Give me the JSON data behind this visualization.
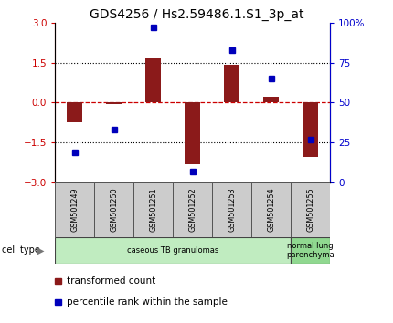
{
  "title": "GDS4256 / Hs2.59486.1.S1_3p_at",
  "samples": [
    "GSM501249",
    "GSM501250",
    "GSM501251",
    "GSM501252",
    "GSM501253",
    "GSM501254",
    "GSM501255"
  ],
  "transformed_count": [
    -0.75,
    -0.05,
    1.65,
    -2.3,
    1.42,
    0.22,
    -2.05
  ],
  "percentile_rank": [
    19,
    33,
    97,
    7,
    83,
    65,
    27
  ],
  "ylim_left": [
    -3,
    3
  ],
  "ylim_right": [
    0,
    100
  ],
  "yticks_left": [
    -3,
    -1.5,
    0,
    1.5,
    3
  ],
  "yticks_right": [
    0,
    25,
    50,
    75,
    100
  ],
  "ytick_labels_right": [
    "0",
    "25",
    "50",
    "75",
    "100%"
  ],
  "hlines_dotted": [
    -1.5,
    1.5
  ],
  "hline_dashed": 0,
  "bar_color": "#8B1A1A",
  "dot_color": "#0000BB",
  "zero_line_color": "#CC0000",
  "grid_line_color": "#000000",
  "cell_type_groups": [
    {
      "label": "caseous TB granulomas",
      "indices": [
        0,
        1,
        2,
        3,
        4,
        5
      ],
      "color": "#c0ecc0"
    },
    {
      "label": "normal lung\nparenchyma",
      "indices": [
        6
      ],
      "color": "#90d890"
    }
  ],
  "cell_type_label": "cell type",
  "legend_items": [
    {
      "color": "#8B1A1A",
      "label": "transformed count"
    },
    {
      "color": "#0000BB",
      "label": "percentile rank within the sample"
    }
  ],
  "title_fontsize": 10,
  "tick_label_color_left": "#CC0000",
  "tick_label_color_right": "#0000CC",
  "bar_width": 0.4,
  "sample_box_color": "#cccccc",
  "sample_box_edge": "#555555"
}
